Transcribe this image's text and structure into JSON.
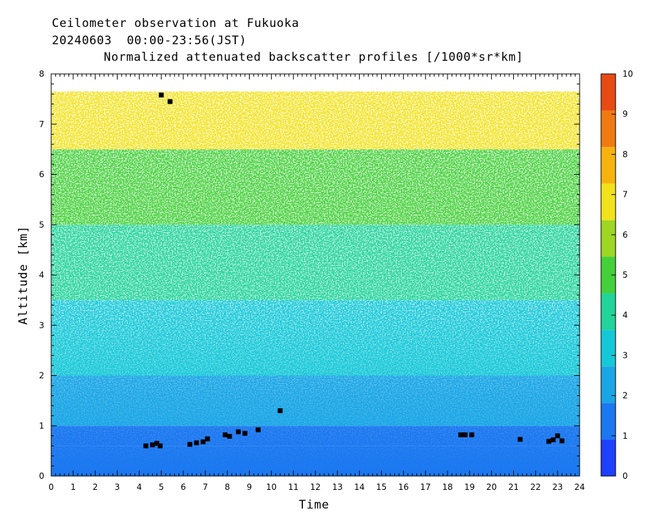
{
  "header": {
    "line1": "Ceilometer observation at Fukuoka",
    "line2": "20240603  00:00-23:56(JST)",
    "line3": "Normalized attenuated backscatter profiles [/1000*sr*km]"
  },
  "chart_data": {
    "type": "heatmap",
    "xlabel": "Time",
    "ylabel": "Altitude [km]",
    "xlim": [
      0,
      24
    ],
    "ylim": [
      0,
      8
    ],
    "xticks": [
      0,
      1,
      2,
      3,
      4,
      5,
      6,
      7,
      8,
      9,
      10,
      11,
      12,
      13,
      14,
      15,
      16,
      17,
      18,
      19,
      20,
      21,
      22,
      23,
      24
    ],
    "yticks": [
      0,
      1,
      2,
      3,
      4,
      5,
      6,
      7,
      8
    ],
    "data_top_km": 7.65,
    "colorbar": {
      "range": [
        0,
        10
      ],
      "ticks": [
        0,
        1,
        2,
        3,
        4,
        5,
        6,
        7,
        8,
        9,
        10
      ],
      "colors": [
        "#1e40ff",
        "#1b78f0",
        "#1aa6e6",
        "#15c8d8",
        "#22d39a",
        "#44d03a",
        "#9ed624",
        "#f2e21c",
        "#f6b30e",
        "#f07a12",
        "#e84a14"
      ]
    },
    "profile_levels": [
      {
        "altitude_range": [
          0,
          0.6
        ],
        "value": 0.8
      },
      {
        "altitude_range": [
          0.6,
          1.0
        ],
        "value": 1.0
      },
      {
        "altitude_range": [
          1.0,
          2.0
        ],
        "value": 1.7
      },
      {
        "altitude_range": [
          2.0,
          3.5
        ],
        "value": 2.6
      },
      {
        "altitude_range": [
          3.5,
          5.0
        ],
        "value": 3.6
      },
      {
        "altitude_range": [
          5.0,
          6.5
        ],
        "value": 5.0
      },
      {
        "altitude_range": [
          6.5,
          7.65
        ],
        "value": 6.5
      }
    ],
    "cloud_base_points": [
      {
        "x": 4.3,
        "y": 0.6
      },
      {
        "x": 4.6,
        "y": 0.62
      },
      {
        "x": 4.8,
        "y": 0.65
      },
      {
        "x": 4.95,
        "y": 0.6
      },
      {
        "x": 5.0,
        "y": 7.58
      },
      {
        "x": 5.4,
        "y": 7.45
      },
      {
        "x": 6.3,
        "y": 0.63
      },
      {
        "x": 6.6,
        "y": 0.66
      },
      {
        "x": 6.9,
        "y": 0.68
      },
      {
        "x": 7.1,
        "y": 0.74
      },
      {
        "x": 7.9,
        "y": 0.82
      },
      {
        "x": 8.1,
        "y": 0.79
      },
      {
        "x": 8.5,
        "y": 0.88
      },
      {
        "x": 8.8,
        "y": 0.85
      },
      {
        "x": 9.4,
        "y": 0.92
      },
      {
        "x": 10.4,
        "y": 1.3
      },
      {
        "x": 18.6,
        "y": 0.82
      },
      {
        "x": 18.8,
        "y": 0.82
      },
      {
        "x": 19.1,
        "y": 0.82
      },
      {
        "x": 21.3,
        "y": 0.73
      },
      {
        "x": 22.6,
        "y": 0.69
      },
      {
        "x": 22.8,
        "y": 0.72
      },
      {
        "x": 23.0,
        "y": 0.8
      },
      {
        "x": 23.2,
        "y": 0.7
      }
    ]
  }
}
